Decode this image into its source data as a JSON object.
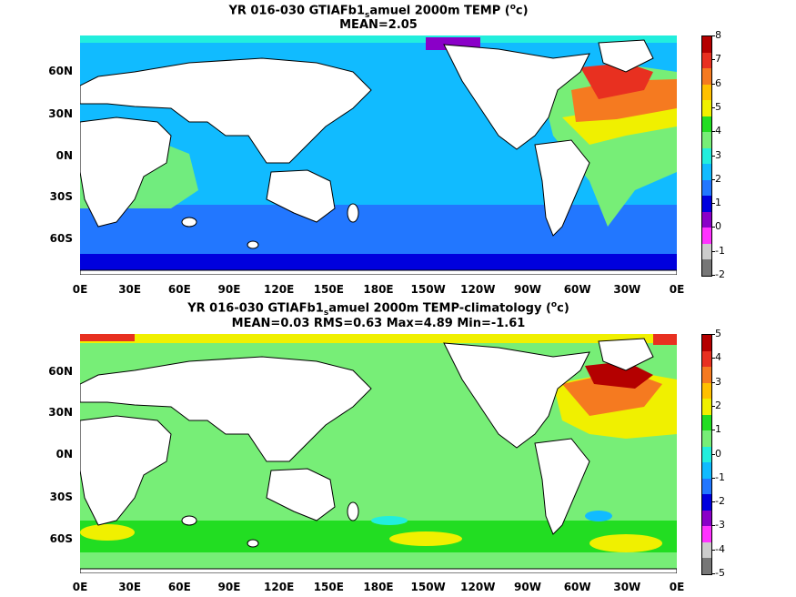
{
  "panels": [
    {
      "title_line1_a": "YR 016-030 GTIAFb1",
      "title_line1_sub": "s",
      "title_line1_b": "amuel 2000m TEMP (",
      "title_line1_sup": "o",
      "title_line1_c": "c)",
      "title_line2": "MEAN=2.05",
      "colorbar_labels": [
        "8",
        "7",
        "6",
        "5",
        "4",
        "3",
        "2",
        "1",
        "0",
        "-1",
        "-2"
      ],
      "colorbar_colors": [
        "#b40000",
        "#e83020",
        "#f57a20",
        "#ffc000",
        "#f0f000",
        "#22dd22",
        "#77ee77",
        "#22eedd",
        "#11bbff",
        "#2277ff",
        "#0000dd",
        "#8a00c8",
        "#ff33ff",
        "#cccccc",
        "#777777"
      ],
      "lat_labels": [
        "60N",
        "30N",
        "0N",
        "30S",
        "60S"
      ],
      "lon_labels": [
        "0E",
        "30E",
        "60E",
        "90E",
        "120E",
        "150E",
        "180E",
        "150W",
        "120W",
        "90W",
        "60W",
        "30W",
        "0E"
      ]
    },
    {
      "title_line1_a": "YR 016-030 GTIAFb1",
      "title_line1_sub": "s",
      "title_line1_b": "amuel 2000m TEMP-climatology (",
      "title_line1_sup": "o",
      "title_line1_c": "c)",
      "title_line2": "MEAN=0.03   RMS=0.63   Max=4.89   Min=-1.61",
      "colorbar_labels": [
        "5",
        "4",
        "3",
        "2",
        "1",
        "0",
        "-1",
        "-2",
        "-3",
        "-4",
        "-5"
      ],
      "colorbar_colors": [
        "#b40000",
        "#e83020",
        "#f57a20",
        "#ffc000",
        "#f0f000",
        "#22dd22",
        "#77ee77",
        "#22eedd",
        "#11bbff",
        "#2277ff",
        "#0000dd",
        "#8a00c8",
        "#ff33ff",
        "#cccccc",
        "#777777"
      ],
      "lat_labels": [
        "60N",
        "30N",
        "0N",
        "30S",
        "60S"
      ],
      "lon_labels": [
        "0E",
        "30E",
        "60E",
        "90E",
        "120E",
        "150E",
        "180E",
        "150W",
        "120W",
        "90W",
        "60W",
        "30W",
        "0E"
      ]
    }
  ]
}
